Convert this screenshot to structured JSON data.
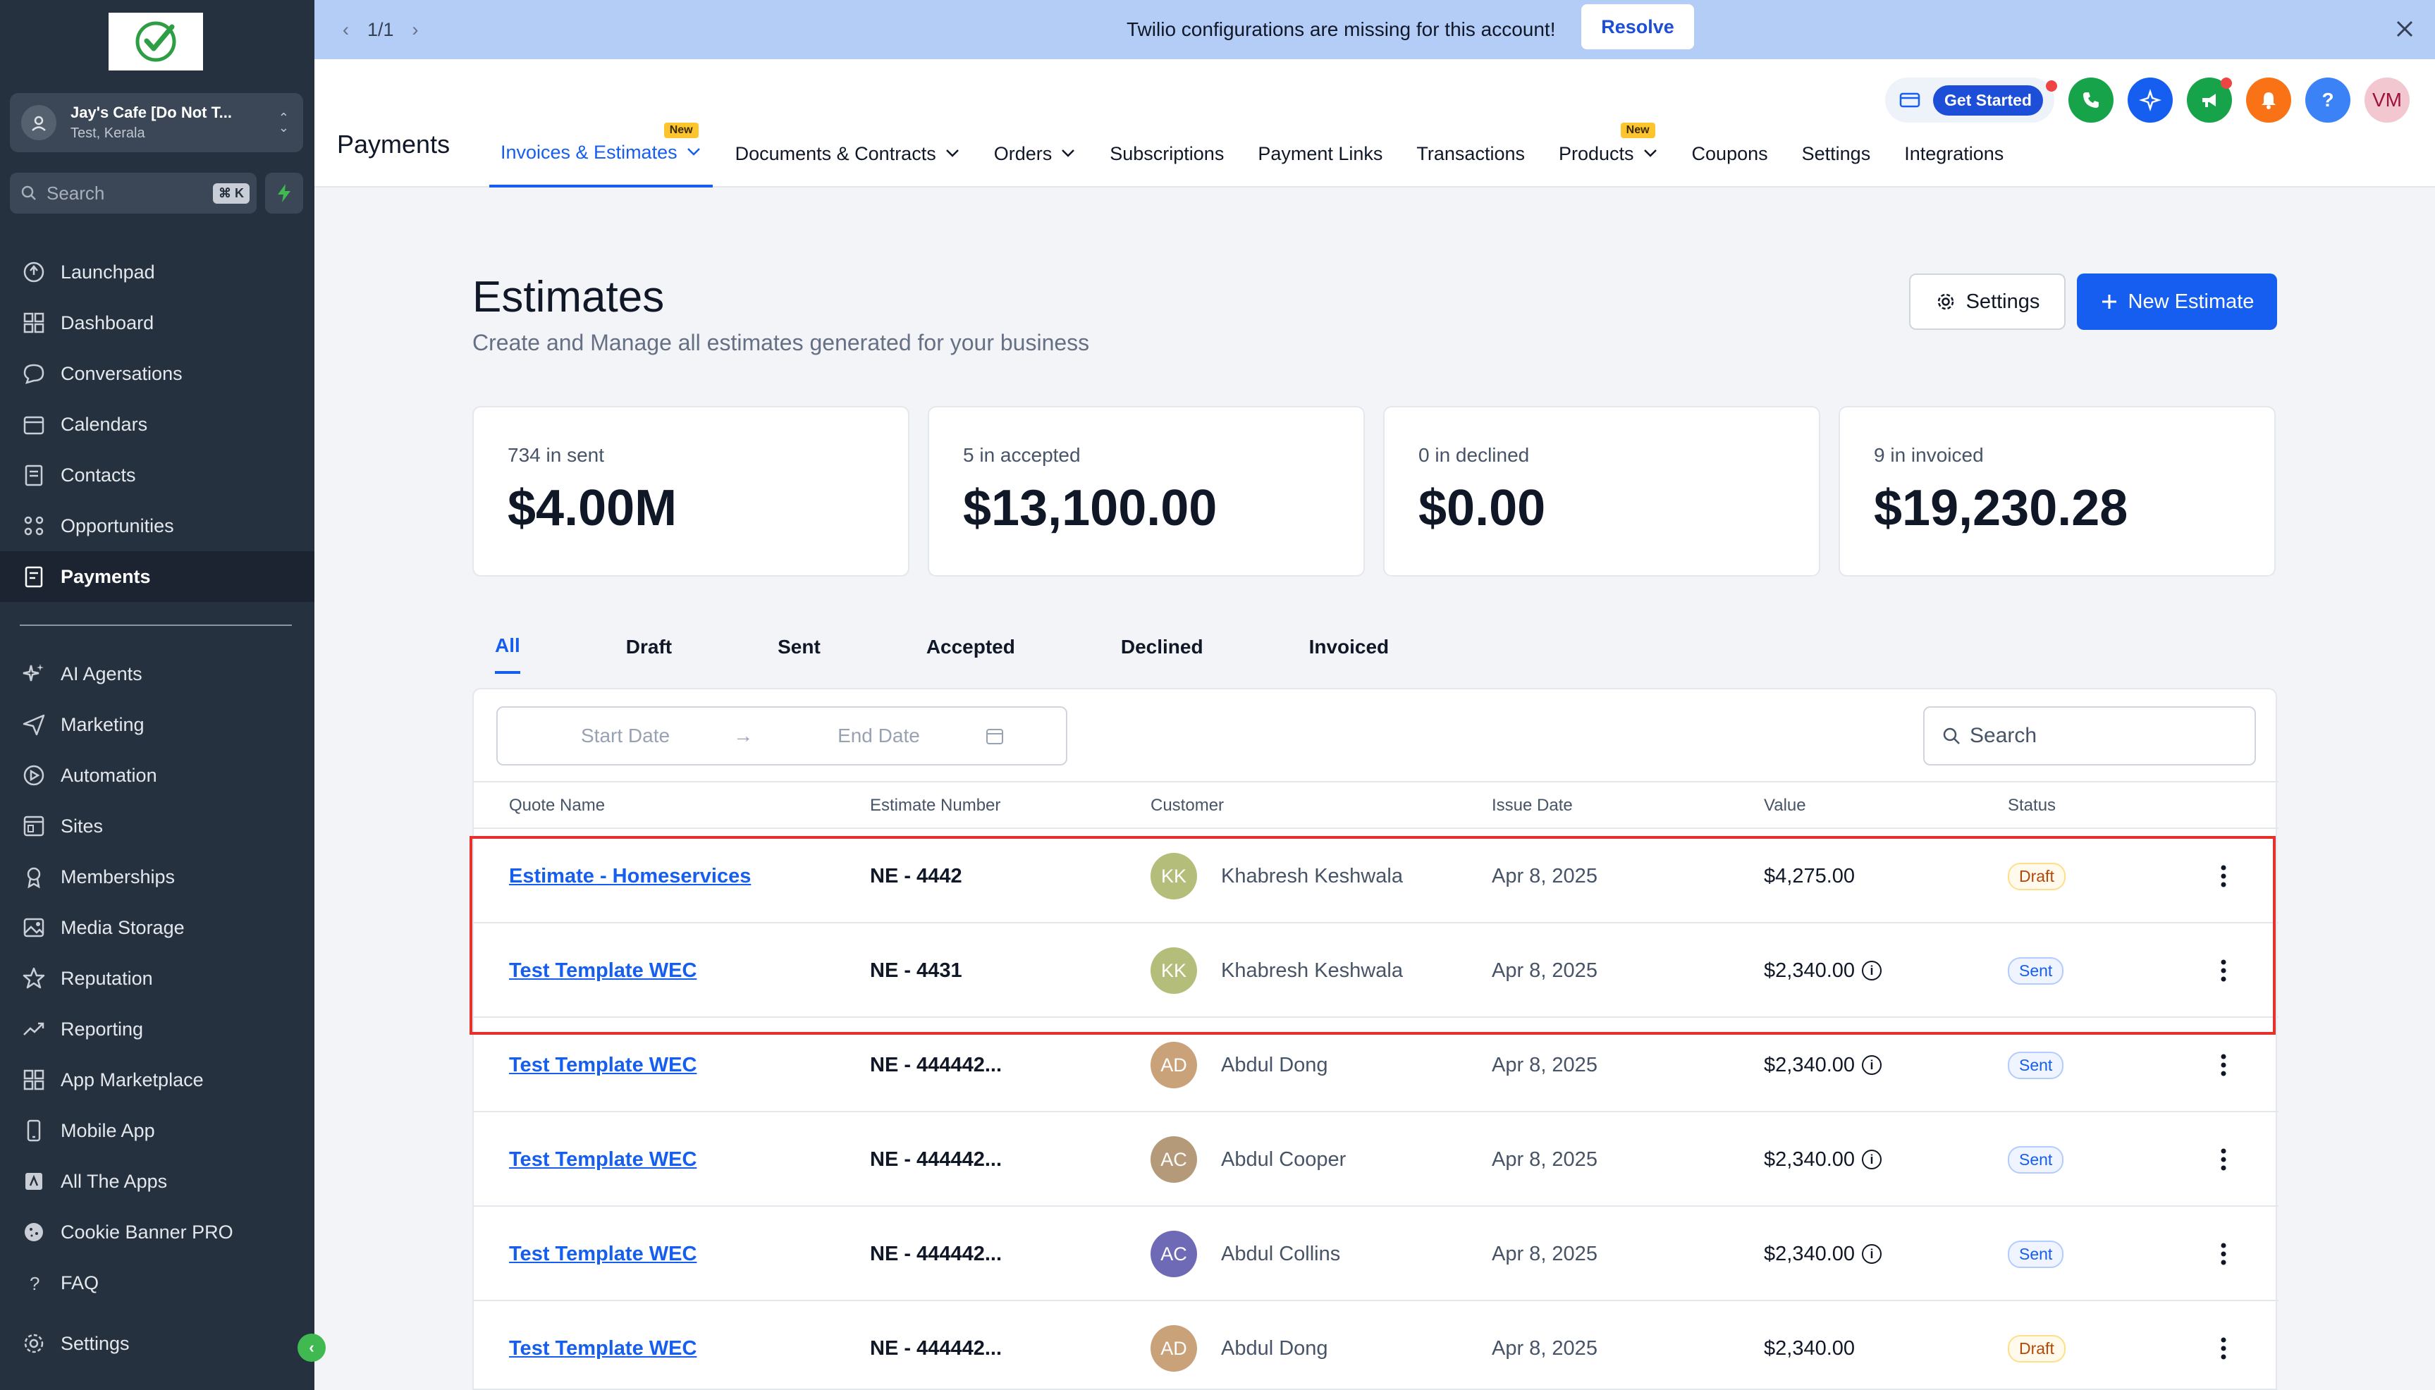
{
  "sidebar": {
    "account": {
      "name": "Jay's Cafe [Do Not T...",
      "location": "Test, Kerala"
    },
    "search": {
      "placeholder": "Search",
      "shortcut": "⌘ K"
    },
    "items": [
      {
        "label": "Launchpad",
        "icon": "launchpad-icon"
      },
      {
        "label": "Dashboard",
        "icon": "dashboard-icon"
      },
      {
        "label": "Conversations",
        "icon": "chat-icon"
      },
      {
        "label": "Calendars",
        "icon": "calendar-icon"
      },
      {
        "label": "Contacts",
        "icon": "contacts-icon"
      },
      {
        "label": "Opportunities",
        "icon": "opportunities-icon"
      },
      {
        "label": "Payments",
        "icon": "payments-icon",
        "active": true
      }
    ],
    "items2": [
      {
        "label": "AI Agents",
        "icon": "sparkle-icon"
      },
      {
        "label": "Marketing",
        "icon": "send-icon"
      },
      {
        "label": "Automation",
        "icon": "automation-icon"
      },
      {
        "label": "Sites",
        "icon": "sites-icon"
      },
      {
        "label": "Memberships",
        "icon": "membership-icon"
      },
      {
        "label": "Media Storage",
        "icon": "image-icon"
      },
      {
        "label": "Reputation",
        "icon": "star-icon"
      },
      {
        "label": "Reporting",
        "icon": "trend-icon"
      },
      {
        "label": "App Marketplace",
        "icon": "grid-icon"
      },
      {
        "label": "Mobile App",
        "icon": "mobile-icon"
      },
      {
        "label": "All The Apps",
        "icon": "apps-icon"
      },
      {
        "label": "Cookie Banner PRO",
        "icon": "cookie-icon"
      },
      {
        "label": "FAQ",
        "icon": "question-icon"
      },
      {
        "label": "Settings",
        "icon": "gear-icon"
      }
    ]
  },
  "banner": {
    "pager": "1/1",
    "message": "Twilio configurations are missing for this account!",
    "resolve_label": "Resolve"
  },
  "header": {
    "title": "Payments",
    "get_started": "Get Started",
    "user_initials": "VM",
    "help": "?",
    "tabs": [
      {
        "label": "Invoices & Estimates",
        "dropdown": true,
        "badge": "New",
        "active": true
      },
      {
        "label": "Documents & Contracts",
        "dropdown": true
      },
      {
        "label": "Orders",
        "dropdown": true
      },
      {
        "label": "Subscriptions"
      },
      {
        "label": "Payment Links"
      },
      {
        "label": "Transactions"
      },
      {
        "label": "Products",
        "dropdown": true,
        "badge": "New"
      },
      {
        "label": "Coupons"
      },
      {
        "label": "Settings"
      },
      {
        "label": "Integrations"
      }
    ]
  },
  "page": {
    "title": "Estimates",
    "subtitle": "Create and Manage all estimates generated for your business",
    "settings_label": "Settings",
    "new_label": "New Estimate"
  },
  "stats": [
    {
      "label": "734 in sent",
      "value": "$4.00M"
    },
    {
      "label": "5 in accepted",
      "value": "$13,100.00"
    },
    {
      "label": "0 in declined",
      "value": "$0.00"
    },
    {
      "label": "9 in invoiced",
      "value": "$19,230.28"
    }
  ],
  "filter_tabs": [
    "All",
    "Draft",
    "Sent",
    "Accepted",
    "Declined",
    "Invoiced"
  ],
  "filters": {
    "start_placeholder": "Start Date",
    "end_placeholder": "End Date",
    "search_placeholder": "Search"
  },
  "table": {
    "columns": [
      "Quote Name",
      "Estimate Number",
      "Customer",
      "Issue Date",
      "Value",
      "Status"
    ],
    "rows": [
      {
        "name": "Estimate - Homeservices",
        "number": "NE - 4442",
        "initials": "KK",
        "avatar_color": "#b5bd7a",
        "customer": "Khabresh Keshwala",
        "date": "Apr 8, 2025",
        "value": "$4,275.00",
        "info": false,
        "status": "Draft"
      },
      {
        "name": "Test Template WEC",
        "number": "NE - 4431",
        "initials": "KK",
        "avatar_color": "#b5bd7a",
        "customer": "Khabresh Keshwala",
        "date": "Apr 8, 2025",
        "value": "$2,340.00",
        "info": true,
        "status": "Sent"
      },
      {
        "name": "Test Template WEC",
        "number": "NE - 444442...",
        "initials": "AD",
        "avatar_color": "#c9a27a",
        "customer": "Abdul Dong",
        "date": "Apr 8, 2025",
        "value": "$2,340.00",
        "info": true,
        "status": "Sent"
      },
      {
        "name": "Test Template WEC",
        "number": "NE - 444442...",
        "initials": "AC",
        "avatar_color": "#b59a7a",
        "customer": "Abdul Cooper",
        "date": "Apr 8, 2025",
        "value": "$2,340.00",
        "info": true,
        "status": "Sent"
      },
      {
        "name": "Test Template WEC",
        "number": "NE - 444442...",
        "initials": "AC",
        "avatar_color": "#6f6ab5",
        "customer": "Abdul Collins",
        "date": "Apr 8, 2025",
        "value": "$2,340.00",
        "info": true,
        "status": "Sent"
      },
      {
        "name": "Test Template WEC",
        "number": "NE - 444442...",
        "initials": "AD",
        "avatar_color": "#c9a27a",
        "customer": "Abdul Dong",
        "date": "Apr 8, 2025",
        "value": "$2,340.00",
        "info": false,
        "status": "Draft"
      }
    ]
  }
}
